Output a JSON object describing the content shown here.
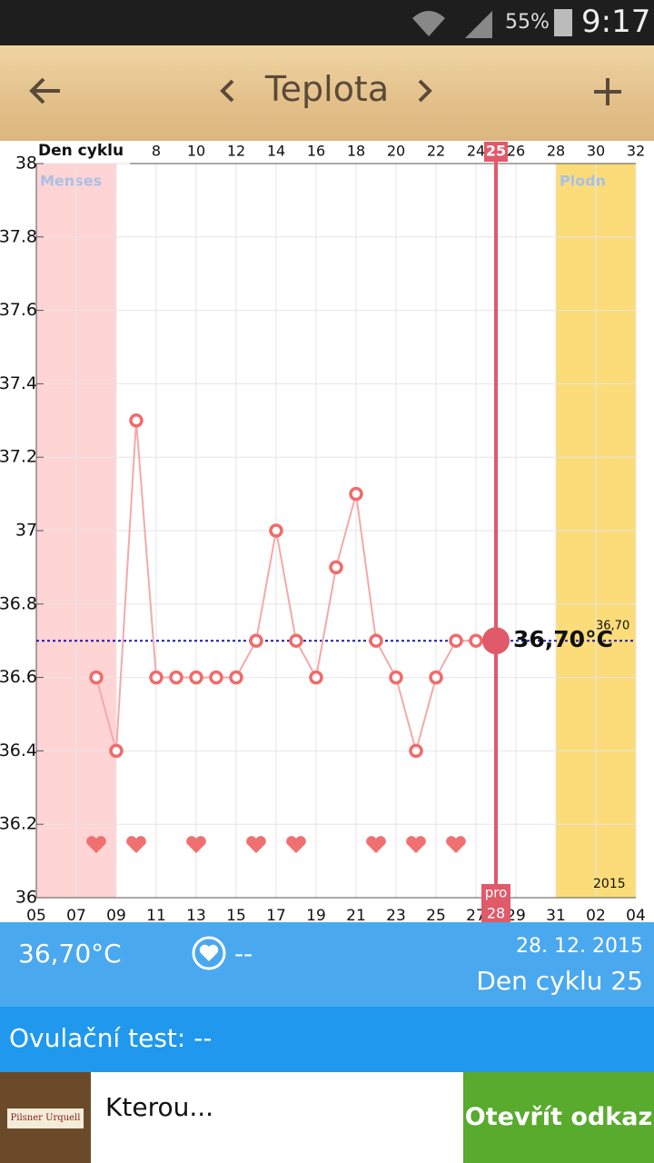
{
  "status_bar": {
    "battery": "55%",
    "time": "9:17"
  },
  "toolbar": {
    "title": "Teplota"
  },
  "chart_data": {
    "type": "line",
    "x_title": "Den cyklu",
    "x": [
      5,
      6,
      7,
      8,
      9,
      10,
      11,
      12,
      13,
      14,
      15,
      16,
      17,
      18,
      19,
      20,
      21,
      22,
      23,
      24,
      25
    ],
    "values": [
      36.6,
      36.4,
      37.3,
      36.6,
      36.6,
      36.6,
      36.6,
      36.6,
      36.7,
      37.0,
      36.7,
      36.6,
      36.9,
      37.1,
      36.7,
      36.6,
      36.4,
      36.6,
      36.7,
      36.7,
      36.7
    ],
    "color": "#f06b6b",
    "xlim": [
      2,
      32
    ],
    "xticks": [
      8,
      10,
      12,
      14,
      16,
      18,
      20,
      22,
      24,
      26,
      28,
      30,
      32
    ],
    "date_ticks": [
      {
        "value": 2,
        "label": "05"
      },
      {
        "value": 4,
        "label": "07"
      },
      {
        "value": 6,
        "label": "09"
      },
      {
        "value": 8,
        "label": "11"
      },
      {
        "value": 10,
        "label": "13"
      },
      {
        "value": 12,
        "label": "15"
      },
      {
        "value": 14,
        "label": "17"
      },
      {
        "value": 16,
        "label": "19"
      },
      {
        "value": 18,
        "label": "21"
      },
      {
        "value": 20,
        "label": "23"
      },
      {
        "value": 22,
        "label": "25"
      },
      {
        "value": 24,
        "label": "27"
      },
      {
        "value": 26,
        "label": "29"
      },
      {
        "value": 28,
        "label": "31"
      },
      {
        "value": 30,
        "label": "02"
      },
      {
        "value": 32,
        "label": "04"
      }
    ],
    "ylim": [
      36,
      38
    ],
    "yticks": [
      36,
      36.2,
      36.4,
      36.6,
      36.8,
      37,
      37.2,
      37.4,
      37.6,
      37.8,
      38
    ],
    "grid": true,
    "selected_day": 25,
    "selected_date": {
      "value": 25,
      "label": "28"
    },
    "selected_month": "pro",
    "reference": {
      "value": 36.7,
      "label": "36,70",
      "color": "#1a1aa8"
    },
    "current": {
      "value": 36.7,
      "label": "36,70°C"
    },
    "bands": [
      {
        "name": "Menses",
        "range": [
          2,
          6
        ],
        "color": "#ffd4d4"
      },
      {
        "name": "Plodn",
        "range": [
          28,
          32
        ],
        "color": "#fbdc78"
      }
    ],
    "heart_days": [
      5,
      7,
      10,
      13,
      15,
      19,
      21,
      23
    ],
    "year": "2015"
  },
  "summary": {
    "temperature": "36,70°C",
    "intercourse": "--",
    "date": "28. 12. 2015",
    "cycle_day": "Den cyklu 25"
  },
  "ovulation_test": "Ovulační test: --",
  "ad": {
    "logo": "Pilsner Urquell",
    "text": "Kterou...",
    "button": "Otevřít odkaz"
  }
}
